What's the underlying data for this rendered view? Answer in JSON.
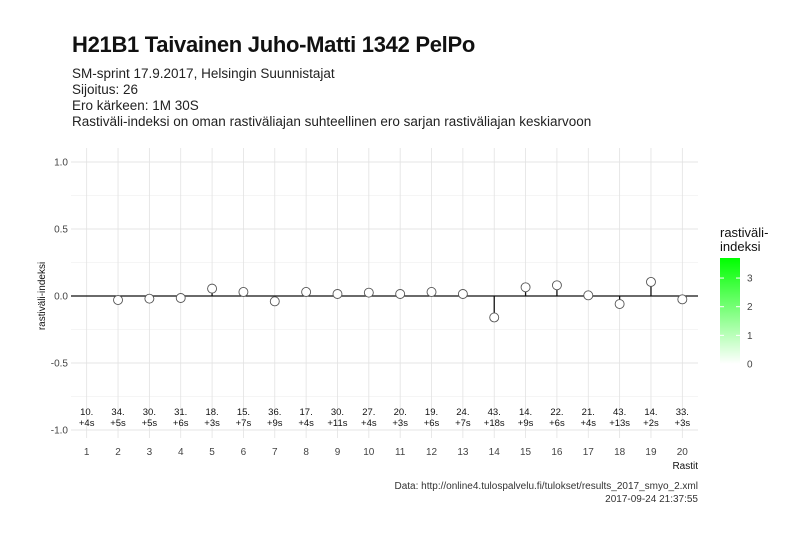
{
  "title": "H21B1 Taivainen Juho-Matti 1342 PelPo",
  "subtitle_lines": [
    "SM-sprint 17.9.2017, Helsingin Suunnistajat",
    "Sijoitus: 26",
    "Ero kärkeen: 1M 30S",
    "Rastiväli-indeksi on oman rastiväliajan suhteellinen ero sarjan rastiväliajan keskiarvoon"
  ],
  "caption_lines": [
    "Data: http://online4.tulospalvelu.fi/tulokset/results_2017_smyo_2.xml",
    "2017-09-24 21:37:55"
  ],
  "chart_data": {
    "type": "scatter",
    "xlabel": "Rastit",
    "ylabel": "rastiväli-indeksi",
    "ylim": [
      -1.0,
      1.0
    ],
    "xlim": [
      0.5,
      20.5
    ],
    "y_ticks": [
      -1.0,
      -0.5,
      0.0,
      0.5,
      1.0
    ],
    "y_tick_labels": [
      "-1.0",
      "-0.5",
      "0.0",
      "0.5",
      "1.0"
    ],
    "x_ticks": [
      1,
      2,
      3,
      4,
      5,
      6,
      7,
      8,
      9,
      10,
      11,
      12,
      13,
      14,
      15,
      16,
      17,
      18,
      19,
      20
    ],
    "x_tick_labels": [
      "1",
      "2",
      "3",
      "4",
      "5",
      "6",
      "7",
      "8",
      "9",
      "10",
      "11",
      "12",
      "13",
      "14",
      "15",
      "16",
      "17",
      "18",
      "19",
      "20"
    ],
    "grid": true,
    "legend_placement": "right",
    "legend": {
      "title_lines": [
        "rastiväli-",
        "indeksi"
      ],
      "ticks": [
        0,
        1,
        2,
        3
      ],
      "tick_labels": [
        "0",
        "1",
        "2",
        "3"
      ],
      "range": [
        0,
        3.7
      ],
      "color_low": "#ffffff",
      "color_high": "#00ff00"
    },
    "x": [
      1,
      2,
      3,
      4,
      5,
      6,
      7,
      8,
      9,
      10,
      11,
      12,
      13,
      14,
      15,
      16,
      17,
      18,
      19,
      20
    ],
    "values": [
      null,
      -0.03,
      -0.02,
      -0.015,
      0.055,
      0.03,
      -0.04,
      0.03,
      0.015,
      0.025,
      0.015,
      0.03,
      0.015,
      -0.16,
      0.065,
      0.08,
      0.005,
      -0.06,
      0.105,
      -0.025
    ],
    "labels_top": [
      "10.",
      "34.",
      "30.",
      "31.",
      "18.",
      "15.",
      "36.",
      "17.",
      "30.",
      "27.",
      "20.",
      "19.",
      "24.",
      "43.",
      "14.",
      "22.",
      "21.",
      "43.",
      "14.",
      "33."
    ],
    "labels_bottom": [
      "+4s",
      "+5s",
      "+5s",
      "+6s",
      "+3s",
      "+7s",
      "+9s",
      "+4s",
      "+11s",
      "+4s",
      "+3s",
      "+6s",
      "+7s",
      "+18s",
      "+9s",
      "+6s",
      "+4s",
      "+13s",
      "+2s",
      "+3s"
    ]
  }
}
